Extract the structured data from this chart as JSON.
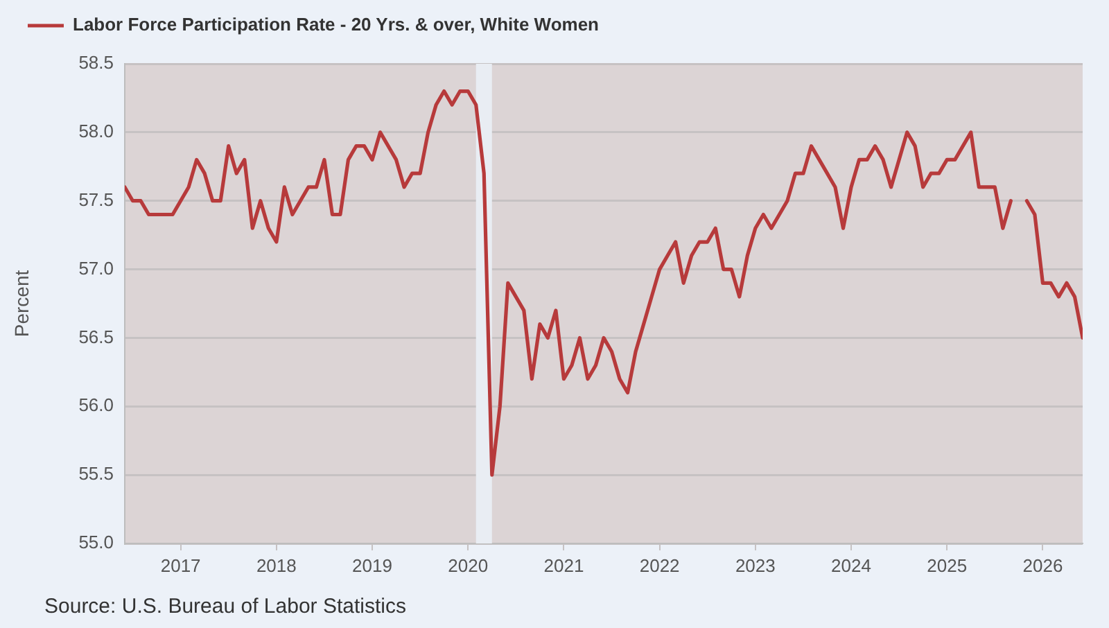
{
  "chart_data": {
    "type": "line",
    "ylabel": "Percent",
    "annotations": [
      "Source: U.S. Bureau of Labor Statistics"
    ],
    "x": [
      "2016-06",
      "2016-07",
      "2016-08",
      "2016-09",
      "2016-10",
      "2016-11",
      "2016-12",
      "2017-01",
      "2017-02",
      "2017-03",
      "2017-04",
      "2017-05",
      "2017-06",
      "2017-07",
      "2017-08",
      "2017-09",
      "2017-10",
      "2017-11",
      "2017-12",
      "2018-01",
      "2018-02",
      "2018-03",
      "2018-04",
      "2018-05",
      "2018-06",
      "2018-07",
      "2018-08",
      "2018-09",
      "2018-10",
      "2018-11",
      "2018-12",
      "2019-01",
      "2019-02",
      "2019-03",
      "2019-04",
      "2019-05",
      "2019-06",
      "2019-07",
      "2019-08",
      "2019-09",
      "2019-10",
      "2019-11",
      "2019-12",
      "2020-01",
      "2020-02",
      "2020-03",
      "2020-04",
      "2020-05",
      "2020-06",
      "2020-07",
      "2020-08",
      "2020-09",
      "2020-10",
      "2020-11",
      "2020-12",
      "2021-01",
      "2021-02",
      "2021-03",
      "2021-04",
      "2021-05",
      "2021-06",
      "2021-07",
      "2021-08",
      "2021-09",
      "2021-10",
      "2021-11",
      "2021-12",
      "2022-01",
      "2022-02",
      "2022-03",
      "2022-04",
      "2022-05",
      "2022-06",
      "2022-07",
      "2022-08",
      "2022-09",
      "2022-10",
      "2022-11",
      "2022-12",
      "2023-01",
      "2023-02",
      "2023-03",
      "2023-04",
      "2023-05",
      "2023-06",
      "2023-07",
      "2023-08",
      "2023-09",
      "2023-10",
      "2023-11",
      "2023-12",
      "2024-01",
      "2024-02",
      "2024-03",
      "2024-04",
      "2024-05",
      "2024-06",
      "2024-07",
      "2024-08",
      "2024-09",
      "2024-10",
      "2024-11",
      "2024-12",
      "2025-01",
      "2025-02",
      "2025-03",
      "2025-04",
      "2025-05",
      "2025-06",
      "2025-07",
      "2025-08",
      "2025-09",
      "2025-10",
      "2025-11",
      "2025-12",
      "2026-01",
      "2026-02",
      "2026-03",
      "2026-04",
      "2026-05",
      "2026-06"
    ],
    "series": [
      {
        "name": "Labor Force Participation Rate - 20 Yrs. & over, White Women",
        "color": "#b73a3b",
        "values": [
          57.6,
          57.5,
          57.5,
          57.4,
          57.4,
          57.4,
          57.4,
          57.5,
          57.6,
          57.8,
          57.7,
          57.5,
          57.5,
          57.9,
          57.7,
          57.8,
          57.3,
          57.5,
          57.3,
          57.2,
          57.6,
          57.4,
          57.5,
          57.6,
          57.6,
          57.8,
          57.4,
          57.4,
          57.8,
          57.9,
          57.9,
          57.8,
          58.0,
          57.9,
          57.8,
          57.6,
          57.7,
          57.7,
          58.0,
          58.2,
          58.3,
          58.2,
          58.3,
          58.3,
          58.2,
          57.7,
          55.5,
          56.0,
          56.9,
          56.8,
          56.7,
          56.2,
          56.6,
          56.5,
          56.7,
          56.2,
          56.3,
          56.5,
          56.2,
          56.3,
          56.5,
          56.4,
          56.2,
          56.1,
          56.4,
          56.6,
          56.8,
          57.0,
          57.1,
          57.2,
          56.9,
          57.1,
          57.2,
          57.2,
          57.3,
          57.0,
          57.0,
          56.8,
          57.1,
          57.3,
          57.4,
          57.3,
          57.4,
          57.5,
          57.7,
          57.7,
          57.9,
          57.8,
          57.7,
          57.6,
          57.3,
          57.6,
          57.8,
          57.8,
          57.9,
          57.8,
          57.6,
          57.8,
          58.0,
          57.9,
          57.6,
          57.7,
          57.7,
          57.8,
          57.8,
          57.9,
          58.0,
          57.6,
          57.6,
          57.6,
          57.3,
          57.5,
          null,
          57.5,
          57.4,
          56.9,
          56.9,
          56.8,
          56.9,
          56.8,
          56.5
        ]
      }
    ],
    "xlim": [
      "2016-06",
      "2026-06"
    ],
    "xticks": [
      "2017",
      "2018",
      "2019",
      "2020",
      "2021",
      "2022",
      "2023",
      "2024",
      "2025",
      "2026"
    ],
    "ylim": [
      55,
      58.5
    ],
    "yticks": [
      {
        "value": 55,
        "label": "55.0"
      },
      55.5,
      {
        "value": 56,
        "label": "56.0"
      },
      56.5,
      {
        "value": 57,
        "label": "57.0"
      },
      57.5,
      {
        "value": 58,
        "label": "58.0"
      },
      58.5
    ],
    "bands": [
      {
        "axis": "x",
        "from": "2020-02",
        "to": "2020-04",
        "color": "#e9edf3"
      }
    ],
    "grid": "y",
    "legend": "top left",
    "marker": "none",
    "line_style": "solid"
  }
}
